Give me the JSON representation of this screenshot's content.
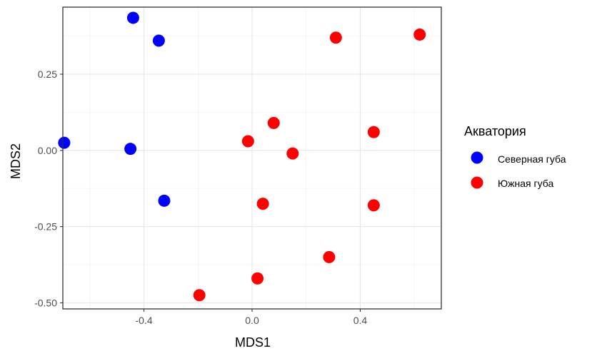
{
  "chart_data": {
    "type": "scatter",
    "xlabel": "MDS1",
    "ylabel": "MDS2",
    "xlim": [
      -0.7,
      0.7
    ],
    "ylim": [
      -0.52,
      0.47
    ],
    "x_ticks": [
      -0.4,
      0.0,
      0.4
    ],
    "x_tick_labels": [
      "-0.4",
      "0.0",
      "0.4"
    ],
    "y_ticks": [
      -0.5,
      -0.25,
      0.0,
      0.25
    ],
    "y_tick_labels": [
      "-0.50",
      "-0.25",
      "0.00",
      "0.25"
    ],
    "grid": true,
    "legend": {
      "title": "Акватория",
      "position": "right"
    },
    "series": [
      {
        "name": "Северная губа",
        "color": "#0000ff",
        "points": [
          {
            "x": -0.44,
            "y": 0.435
          },
          {
            "x": -0.345,
            "y": 0.36
          },
          {
            "x": -0.695,
            "y": 0.025
          },
          {
            "x": -0.45,
            "y": 0.005
          },
          {
            "x": -0.325,
            "y": -0.165
          }
        ]
      },
      {
        "name": "Южная губа",
        "color": "#ff0000",
        "points": [
          {
            "x": 0.31,
            "y": 0.37
          },
          {
            "x": 0.62,
            "y": 0.38
          },
          {
            "x": 0.08,
            "y": 0.09
          },
          {
            "x": 0.45,
            "y": 0.06
          },
          {
            "x": -0.015,
            "y": 0.03
          },
          {
            "x": 0.15,
            "y": -0.01
          },
          {
            "x": 0.04,
            "y": -0.175
          },
          {
            "x": 0.45,
            "y": -0.18
          },
          {
            "x": 0.285,
            "y": -0.35
          },
          {
            "x": 0.02,
            "y": -0.42
          },
          {
            "x": -0.195,
            "y": -0.475
          }
        ]
      }
    ]
  }
}
